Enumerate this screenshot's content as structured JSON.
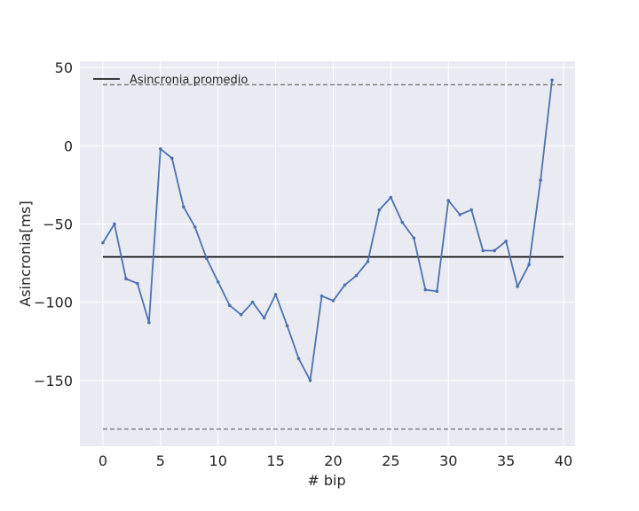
{
  "chart_data": {
    "type": "line",
    "xlabel": "# bip",
    "ylabel": "Asincronia[ms]",
    "xlim": [
      -2,
      41
    ],
    "ylim": [
      -192,
      54
    ],
    "xticks": [
      0,
      5,
      10,
      15,
      20,
      25,
      30,
      35,
      40
    ],
    "yticks": [
      50,
      0,
      -50,
      -100,
      -150
    ],
    "ytick_labels": [
      "50",
      "0",
      "−50",
      "−100",
      "−150"
    ],
    "grid": true,
    "legend": {
      "placement": "top-left",
      "entries": [
        "Asincronia promedio"
      ]
    },
    "colors": {
      "series": "#4c72b0",
      "mean": "#000000",
      "bounds": "#808080",
      "background": "#eaeaf2",
      "grid": "#ffffff"
    },
    "series": [
      {
        "x": [
          0,
          1,
          2,
          3,
          4,
          5,
          6,
          7,
          8,
          9,
          10,
          11,
          12,
          13,
          14,
          15,
          16,
          17,
          18,
          19,
          20,
          21,
          22,
          23,
          24,
          25,
          26,
          27,
          28,
          29,
          30,
          31,
          32,
          33,
          34,
          35,
          36,
          37,
          38,
          39
        ],
        "values": [
          -62,
          -50,
          -85,
          -88,
          -113,
          -2,
          -8,
          -39,
          -52,
          -72,
          -87,
          -102,
          -108,
          -100,
          -110,
          -95,
          -115,
          -136,
          -150,
          -96,
          -99,
          -89,
          -83,
          -74,
          -41,
          -33,
          -49,
          -59,
          -92,
          -93,
          -35,
          -44,
          -41,
          -67,
          -67,
          -61,
          -90,
          -76,
          -22,
          42
        ]
      }
    ],
    "mean_line": {
      "name": "Asincronia promedio",
      "y": -71,
      "x_range": [
        0,
        40
      ]
    },
    "bound_lines": [
      {
        "y": 39,
        "x_range": [
          0,
          40
        ]
      },
      {
        "y": -181,
        "x_range": [
          0,
          40
        ]
      }
    ]
  }
}
